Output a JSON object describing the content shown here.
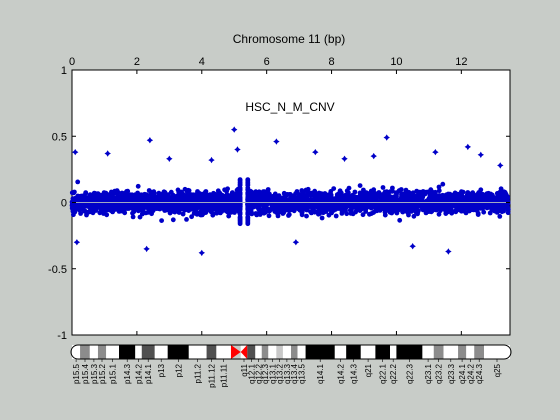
{
  "chart_data": {
    "type": "scatter",
    "title": "Chromosome 11 (bp)",
    "annotation": "HSC_N_M_CNV",
    "x_ticks": [
      "0",
      "2",
      "4",
      "6",
      "8",
      "10",
      "12"
    ],
    "x_tick_values": [
      0,
      2,
      4,
      6,
      8,
      10,
      12
    ],
    "xlim": [
      0,
      13.5
    ],
    "y_ticks": [
      "1",
      "0.5",
      "0",
      "-0.5",
      "-1"
    ],
    "y_tick_values": [
      1,
      0.5,
      0,
      -0.5,
      -1
    ],
    "ylim": [
      -1,
      1
    ],
    "grid": false,
    "point_color": "#0000c8",
    "baseline_color": "#a0a8c0",
    "plot_background": "#ffffff",
    "figure_background": "#c8ccc8",
    "centromere_color": "#ff0000",
    "gap": [
      5.2,
      5.4
    ],
    "density": {
      "core_range": [
        -0.12,
        0.12
      ],
      "typical_range": [
        -0.25,
        0.28
      ],
      "extremes": [
        {
          "x": 0.1,
          "y": 0.38
        },
        {
          "x": 0.15,
          "y": -0.3
        },
        {
          "x": 1.1,
          "y": 0.37
        },
        {
          "x": 2.4,
          "y": 0.47
        },
        {
          "x": 2.3,
          "y": -0.35
        },
        {
          "x": 3.0,
          "y": 0.33
        },
        {
          "x": 4.0,
          "y": -0.38
        },
        {
          "x": 4.3,
          "y": 0.32
        },
        {
          "x": 5.0,
          "y": 0.55
        },
        {
          "x": 5.1,
          "y": 0.4
        },
        {
          "x": 6.3,
          "y": 0.46
        },
        {
          "x": 6.9,
          "y": -0.3
        },
        {
          "x": 7.5,
          "y": 0.38
        },
        {
          "x": 8.4,
          "y": 0.33
        },
        {
          "x": 9.3,
          "y": 0.35
        },
        {
          "x": 9.7,
          "y": 0.49
        },
        {
          "x": 10.5,
          "y": -0.33
        },
        {
          "x": 11.2,
          "y": 0.38
        },
        {
          "x": 11.6,
          "y": -0.37
        },
        {
          "x": 12.2,
          "y": 0.42
        },
        {
          "x": 12.6,
          "y": 0.36
        },
        {
          "x": 13.2,
          "y": 0.28
        }
      ]
    }
  },
  "ideogram": {
    "bands": [
      {
        "label": "p15.5",
        "start": 0.0,
        "end": 0.25,
        "stain": "gneg"
      },
      {
        "label": "p15.4",
        "start": 0.25,
        "end": 0.55,
        "stain": "gpos50"
      },
      {
        "label": "p15.3",
        "start": 0.55,
        "end": 0.8,
        "stain": "gneg"
      },
      {
        "label": "p15.2",
        "start": 0.8,
        "end": 1.05,
        "stain": "gpos50"
      },
      {
        "label": "p15.1",
        "start": 1.05,
        "end": 1.45,
        "stain": "gneg"
      },
      {
        "label": "p14.3",
        "start": 1.45,
        "end": 1.95,
        "stain": "gpos100"
      },
      {
        "label": "p14.2",
        "start": 1.95,
        "end": 2.15,
        "stain": "gneg"
      },
      {
        "label": "p14.1",
        "start": 2.15,
        "end": 2.55,
        "stain": "gpos75"
      },
      {
        "label": "p13",
        "start": 2.55,
        "end": 2.95,
        "stain": "gneg"
      },
      {
        "label": "p12",
        "start": 2.95,
        "end": 3.6,
        "stain": "gpos100"
      },
      {
        "label": "p11.2",
        "start": 3.6,
        "end": 4.15,
        "stain": "gneg"
      },
      {
        "label": "p11.12",
        "start": 4.15,
        "end": 4.45,
        "stain": "gpos75"
      },
      {
        "label": "p11.11",
        "start": 4.45,
        "end": 4.9,
        "stain": "gneg"
      },
      {
        "label": "q11",
        "start": 5.2,
        "end": 5.4,
        "stain": "gneg"
      },
      {
        "label": "q12.1",
        "start": 5.4,
        "end": 5.65,
        "stain": "gpos75"
      },
      {
        "label": "q12.2",
        "start": 5.65,
        "end": 5.85,
        "stain": "gneg"
      },
      {
        "label": "q12.3",
        "start": 5.85,
        "end": 6.05,
        "stain": "gpos50"
      },
      {
        "label": "q13.1",
        "start": 6.05,
        "end": 6.3,
        "stain": "gneg"
      },
      {
        "label": "q13.2",
        "start": 6.3,
        "end": 6.5,
        "stain": "gpos25"
      },
      {
        "label": "q13.3",
        "start": 6.5,
        "end": 6.75,
        "stain": "gneg"
      },
      {
        "label": "q13.4",
        "start": 6.75,
        "end": 6.95,
        "stain": "gpos50"
      },
      {
        "label": "q13.5",
        "start": 6.95,
        "end": 7.2,
        "stain": "gneg"
      },
      {
        "label": "q14.1",
        "start": 7.2,
        "end": 8.1,
        "stain": "gpos100"
      },
      {
        "label": "q14.2",
        "start": 8.1,
        "end": 8.45,
        "stain": "gneg"
      },
      {
        "label": "q14.3",
        "start": 8.45,
        "end": 8.9,
        "stain": "gpos100"
      },
      {
        "label": "q21",
        "start": 8.9,
        "end": 9.35,
        "stain": "gneg"
      },
      {
        "label": "q22.1",
        "start": 9.35,
        "end": 9.8,
        "stain": "gpos100"
      },
      {
        "label": "q22.2",
        "start": 9.8,
        "end": 10.0,
        "stain": "gneg"
      },
      {
        "label": "q22.3",
        "start": 10.0,
        "end": 10.8,
        "stain": "gpos100"
      },
      {
        "label": "q23.1",
        "start": 10.8,
        "end": 11.15,
        "stain": "gneg"
      },
      {
        "label": "q23.2",
        "start": 11.15,
        "end": 11.45,
        "stain": "gpos50"
      },
      {
        "label": "q23.3",
        "start": 11.45,
        "end": 11.9,
        "stain": "gneg"
      },
      {
        "label": "q24.1",
        "start": 11.9,
        "end": 12.15,
        "stain": "gpos50"
      },
      {
        "label": "q24.2",
        "start": 12.15,
        "end": 12.4,
        "stain": "gneg"
      },
      {
        "label": "q24.3",
        "start": 12.4,
        "end": 12.7,
        "stain": "gpos50"
      },
      {
        "label": "q25",
        "start": 12.7,
        "end": 13.5,
        "stain": "gneg"
      }
    ],
    "stain_colors": {
      "gneg": "#ffffff",
      "gpos25": "#c8c8c8",
      "gpos50": "#8c8c8c",
      "gpos75": "#505050",
      "gpos100": "#000000",
      "acen": "#ff0000"
    }
  }
}
